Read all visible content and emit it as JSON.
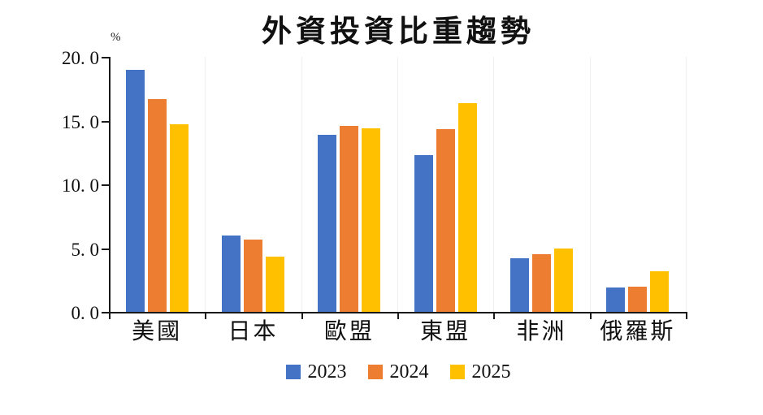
{
  "title": "外資投資比重趨勢",
  "chart_data": {
    "type": "bar",
    "title": "外資投資比重趨勢",
    "ylabel": "%",
    "ylim": [
      0,
      20
    ],
    "yticks": [
      {
        "value": 0,
        "label": "0. 0"
      },
      {
        "value": 5,
        "label": "5. 0"
      },
      {
        "value": 10,
        "label": "10. 0"
      },
      {
        "value": 15,
        "label": "15. 0"
      },
      {
        "value": 20,
        "label": "20. 0"
      }
    ],
    "categories": [
      "美國",
      "日本",
      "歐盟",
      "東盟",
      "非洲",
      "俄羅斯"
    ],
    "series": [
      {
        "name": "2023",
        "color": "#4472C4",
        "values": [
          19.0,
          6.0,
          13.9,
          12.3,
          4.2,
          1.9
        ]
      },
      {
        "name": "2024",
        "color": "#ED7D31",
        "values": [
          16.7,
          5.7,
          14.6,
          14.3,
          4.5,
          2.0
        ]
      },
      {
        "name": "2025",
        "color": "#FFC000",
        "values": [
          14.7,
          4.3,
          14.4,
          16.4,
          5.0,
          3.2
        ]
      }
    ],
    "legend_position": "bottom",
    "grid": "faint-vertical-group-boundaries"
  },
  "colors": {
    "axis": "#1a1a1a",
    "gridline": "#f0f0f0",
    "background": "#ffffff",
    "series_2023": "#4472C4",
    "series_2024": "#ED7D31",
    "series_2025": "#FFC000"
  }
}
